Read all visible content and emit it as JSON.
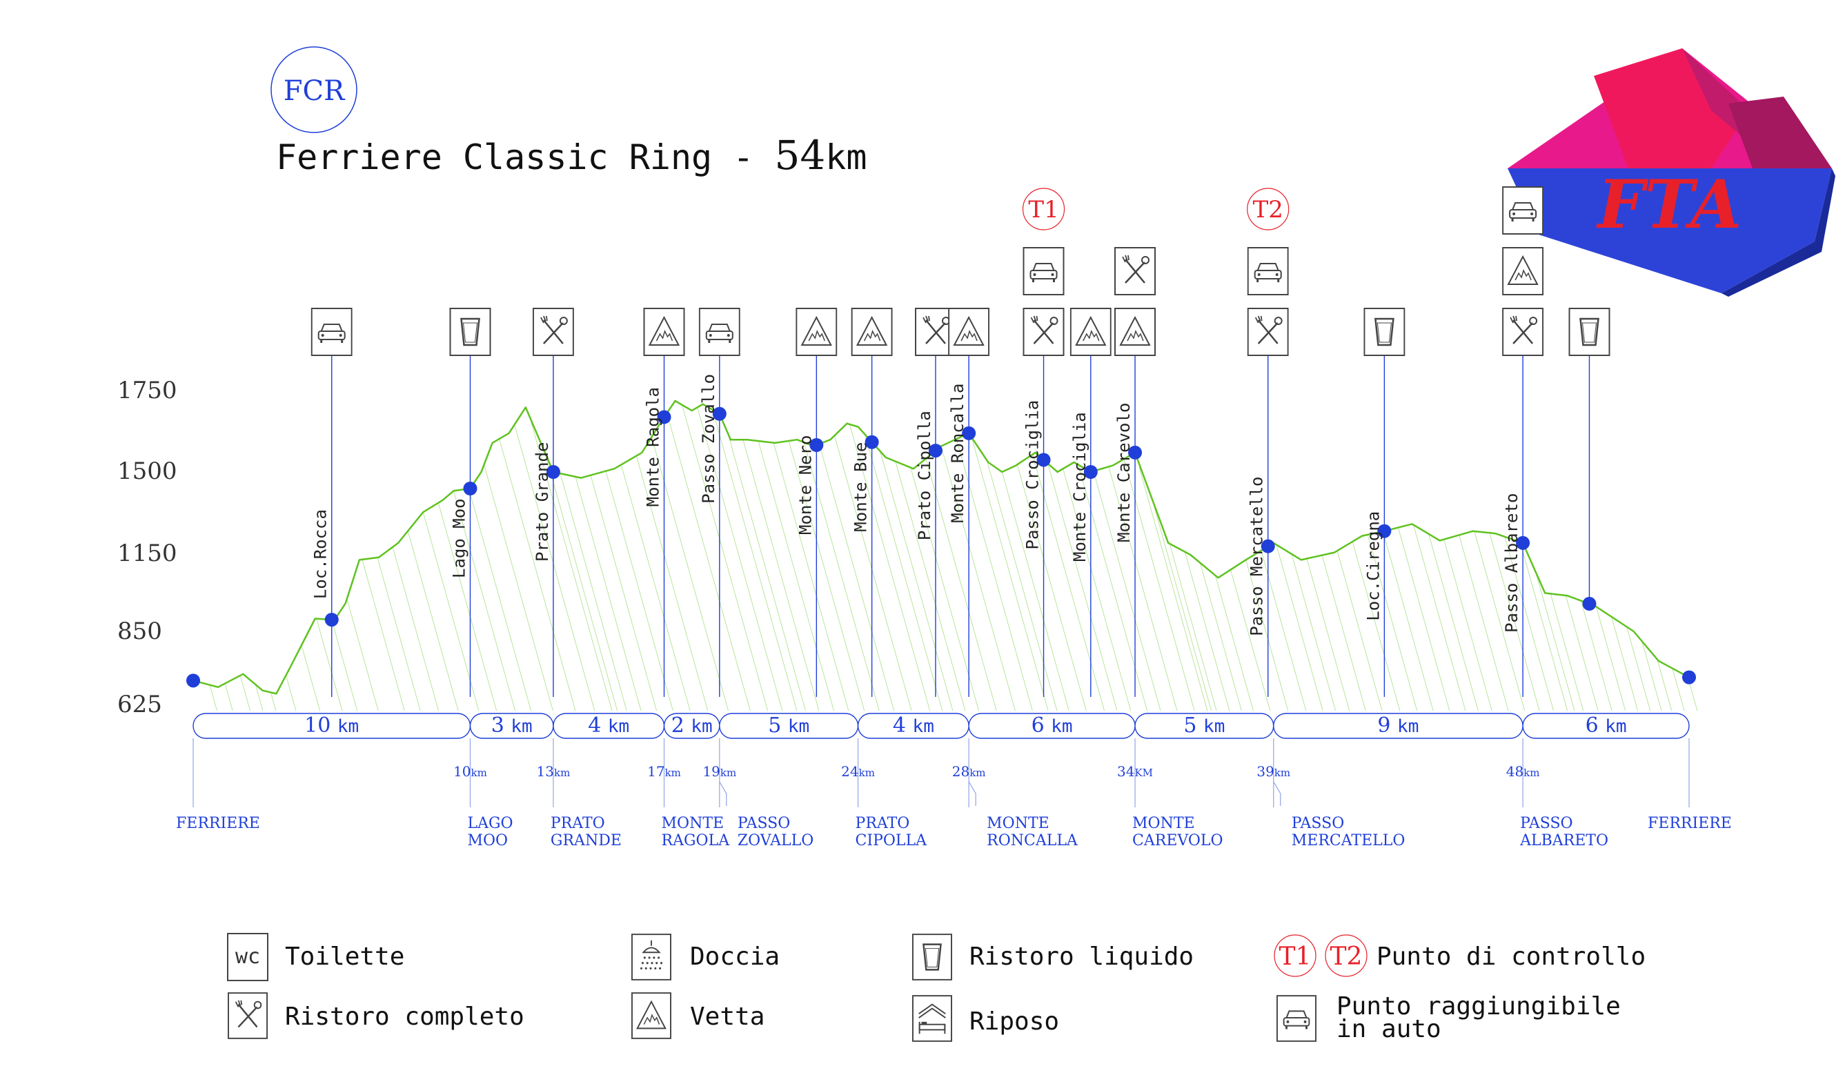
{
  "header": {
    "badge": "FCR",
    "title_prefix": "Ferriere Classic Ring - ",
    "title_number": "54",
    "title_unit": "km"
  },
  "logo": {
    "text": "FTA"
  },
  "colors": {
    "profile": "#5fc21f",
    "blue": "#1f3fd8",
    "red": "#e8202a",
    "icon": "#444444"
  },
  "chart_data": {
    "type": "line",
    "title": "Ferriere Classic Ring - 54 km",
    "y_ticks": [
      "625",
      "850",
      "1150",
      "1500",
      "1750"
    ],
    "y_ticks_note": "tick spacing on the printed axis is uneven; labels reproduced as printed",
    "x": [
      0,
      10,
      13,
      17,
      19,
      24,
      28,
      34,
      39,
      48,
      54
    ],
    "x_unit": "km",
    "profile_x_km": [
      0,
      0.9,
      1.8,
      2.5,
      3.0,
      3.5,
      4.4,
      5.1,
      5.5,
      6.0,
      6.7,
      7.4,
      8.3,
      9.0,
      9.4,
      10.0,
      10.4,
      10.8,
      11.4,
      12.0,
      13.0,
      14.0,
      15.2,
      16.2,
      17.0,
      17.4,
      18.0,
      18.4,
      19.0,
      19.4,
      20.0,
      21.0,
      21.8,
      22.4,
      23.0,
      23.6,
      24.0,
      25.0,
      26.0,
      27.0,
      28.0,
      28.7,
      29.2,
      29.7,
      30.4,
      31.2,
      31.8,
      32.4,
      33.2,
      34.0,
      35.2,
      36.0,
      37.0,
      38.0,
      39.0,
      40.0,
      41.2,
      42.2,
      43.0,
      44.0,
      45.0,
      46.2,
      47.0,
      48.0,
      48.8,
      49.6,
      50.6,
      51.3,
      52.0,
      52.9,
      54.0
    ],
    "profile_elev_m": [
      700,
      680,
      720,
      670,
      660,
      740,
      900,
      895,
      960,
      1130,
      1140,
      1200,
      1330,
      1380,
      1420,
      1430,
      1500,
      1590,
      1620,
      1700,
      1500,
      1475,
      1510,
      1560,
      1670,
      1720,
      1690,
      1710,
      1680,
      1600,
      1600,
      1590,
      1600,
      1580,
      1600,
      1650,
      1640,
      1545,
      1510,
      1580,
      1620,
      1530,
      1500,
      1520,
      1560,
      1500,
      1530,
      1500,
      1520,
      1560,
      1200,
      1150,
      1060,
      1130,
      1200,
      1130,
      1160,
      1230,
      1250,
      1280,
      1210,
      1250,
      1240,
      1200,
      1000,
      990,
      950,
      900,
      850,
      760,
      710
    ],
    "segments": [
      {
        "label": "10",
        "unit": "km"
      },
      {
        "label": "3",
        "unit": "km"
      },
      {
        "label": "4",
        "unit": "km"
      },
      {
        "label": "2",
        "unit": "km"
      },
      {
        "label": "5",
        "unit": "km"
      },
      {
        "label": "4",
        "unit": "km"
      },
      {
        "label": "6",
        "unit": "km"
      },
      {
        "label": "5",
        "unit": "km"
      },
      {
        "label": "9",
        "unit": "km"
      },
      {
        "label": "6",
        "unit": "km"
      }
    ],
    "km_marks": [
      {
        "num": "10",
        "unit": "km"
      },
      {
        "num": "13",
        "unit": "km"
      },
      {
        "num": "17",
        "unit": "km"
      },
      {
        "num": "19",
        "unit": "km"
      },
      {
        "num": "24",
        "unit": "km"
      },
      {
        "num": "28",
        "unit": "km"
      },
      {
        "num": "34",
        "unit": "KM"
      },
      {
        "num": "39",
        "unit": "km"
      },
      {
        "num": "48",
        "unit": "km"
      }
    ],
    "locations": [
      {
        "l1": "FERRIERE",
        "l2": ""
      },
      {
        "l1": "LAGO",
        "l2": "MOO"
      },
      {
        "l1": "PRATO",
        "l2": "GRANDE"
      },
      {
        "l1": "MONTE",
        "l2": "RAGOLA"
      },
      {
        "l1": "PASSO",
        "l2": "ZOVALLO"
      },
      {
        "l1": "PRATO",
        "l2": "CIPOLLA"
      },
      {
        "l1": "MONTE",
        "l2": "RONCALLA"
      },
      {
        "l1": "MONTE",
        "l2": "CAREVOLO"
      },
      {
        "l1": "PASSO",
        "l2": "MERCATELLO"
      },
      {
        "l1": "PASSO",
        "l2": "ALBARETO"
      },
      {
        "l1": "FERRIERE",
        "l2": ""
      }
    ],
    "points": [
      {
        "name": "Loc.Rocca",
        "icons": [
          "car"
        ]
      },
      {
        "name": "Lago Moo",
        "icons": [
          "drink"
        ]
      },
      {
        "name": "Prato Grande",
        "icons": [
          "food"
        ]
      },
      {
        "name": "Monte Ragola",
        "icons": [
          "summit"
        ]
      },
      {
        "name": "Passo Zovallo",
        "icons": [
          "car"
        ]
      },
      {
        "name": "Monte Nero",
        "icons": [
          "summit"
        ]
      },
      {
        "name": "Monte Bue",
        "icons": [
          "summit"
        ]
      },
      {
        "name": "Prato Cipolla",
        "icons": [
          "food"
        ]
      },
      {
        "name": "Monte Roncalla",
        "icons": [
          "summit"
        ]
      },
      {
        "name": "Passo Crociglia",
        "icons": [
          "food",
          "car"
        ],
        "checkpoint": "T1"
      },
      {
        "name": "Monte Crociglia",
        "icons": [
          "summit"
        ]
      },
      {
        "name": "Monte Carevolo",
        "icons": [
          "summit",
          "food"
        ]
      },
      {
        "name": "Passo Mercatello",
        "icons": [
          "food",
          "car"
        ],
        "checkpoint": "T2"
      },
      {
        "name": "Loc.Ciregna",
        "icons": [
          "drink"
        ]
      },
      {
        "name": "Passo Albareto",
        "icons": [
          "food",
          "summit",
          "car"
        ]
      },
      {
        "name": "",
        "icons": [
          "drink"
        ]
      }
    ]
  },
  "legend": {
    "wc_glyph": "wc",
    "toilette": "Toilette",
    "doccia": "Doccia",
    "ristoro_liquido": "Ristoro liquido",
    "t1": "T1",
    "t2": "T2",
    "punto_controllo": "Punto di controllo",
    "ristoro_completo": "Ristoro completo",
    "vetta": "Vetta",
    "riposo": "Riposo",
    "auto_line1": "Punto raggiungibile",
    "auto_line2": "in auto"
  }
}
